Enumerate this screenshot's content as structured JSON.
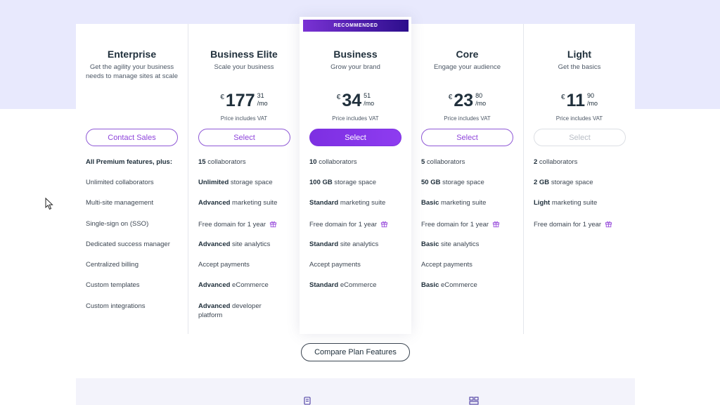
{
  "recommended_badge": "RECOMMENDED",
  "plans": [
    {
      "name": "Enterprise",
      "tagline": "Get the agility your business needs to manage sites at scale",
      "button": "Contact Sales",
      "features_heading": "All Premium features, plus:",
      "features": [
        {
          "b": "",
          "t": "Unlimited collaborators"
        },
        {
          "b": "",
          "t": "Multi-site management"
        },
        {
          "b": "",
          "t": "Single-sign on (SSO)"
        },
        {
          "b": "",
          "t": "Dedicated success manager"
        },
        {
          "b": "",
          "t": "Centralized billing"
        },
        {
          "b": "",
          "t": "Custom templates"
        },
        {
          "b": "",
          "t": "Custom integrations"
        }
      ]
    },
    {
      "name": "Business Elite",
      "tagline": "Scale your business",
      "currency": "€",
      "price_whole": "177",
      "price_cents": "31",
      "per": "/mo",
      "vat": "Price includes VAT",
      "button": "Select",
      "features": [
        {
          "b": "15",
          "t": " collaborators"
        },
        {
          "b": "Unlimited",
          "t": " storage space"
        },
        {
          "b": "Advanced",
          "t": " marketing suite"
        },
        {
          "b": "",
          "t": "Free domain for 1 year",
          "gift": true
        },
        {
          "b": "Advanced",
          "t": " site analytics"
        },
        {
          "b": "",
          "t": "Accept payments"
        },
        {
          "b": "Advanced",
          "t": " eCommerce"
        },
        {
          "b": "Advanced",
          "t": " developer platform"
        }
      ]
    },
    {
      "name": "Business",
      "tagline": "Grow your brand",
      "currency": "€",
      "price_whole": "34",
      "price_cents": "51",
      "per": "/mo",
      "vat": "Price includes VAT",
      "button": "Select",
      "features": [
        {
          "b": "10",
          "t": " collaborators"
        },
        {
          "b": "100 GB",
          "t": " storage space"
        },
        {
          "b": "Standard",
          "t": " marketing suite"
        },
        {
          "b": "",
          "t": "Free domain for 1 year",
          "gift": true
        },
        {
          "b": "Standard",
          "t": " site analytics"
        },
        {
          "b": "",
          "t": "Accept payments"
        },
        {
          "b": "Standard",
          "t": " eCommerce"
        }
      ]
    },
    {
      "name": "Core",
      "tagline": "Engage your audience",
      "currency": "€",
      "price_whole": "23",
      "price_cents": "80",
      "per": "/mo",
      "vat": "Price includes VAT",
      "button": "Select",
      "features": [
        {
          "b": "5",
          "t": " collaborators"
        },
        {
          "b": "50 GB",
          "t": " storage space"
        },
        {
          "b": "Basic",
          "t": " marketing suite"
        },
        {
          "b": "",
          "t": "Free domain for 1 year",
          "gift": true
        },
        {
          "b": "Basic",
          "t": " site analytics"
        },
        {
          "b": "",
          "t": "Accept payments"
        },
        {
          "b": "Basic",
          "t": " eCommerce"
        }
      ]
    },
    {
      "name": "Light",
      "tagline": "Get the basics",
      "currency": "€",
      "price_whole": "11",
      "price_cents": "90",
      "per": "/mo",
      "vat": "Price includes VAT",
      "button": "Select",
      "features": [
        {
          "b": "2",
          "t": " collaborators"
        },
        {
          "b": "2 GB",
          "t": " storage space"
        },
        {
          "b": "Light",
          "t": " marketing suite"
        },
        {
          "b": "",
          "t": "Free domain for 1 year",
          "gift": true
        }
      ]
    }
  ],
  "compare_button": "Compare Plan Features",
  "colors": {
    "accent": "#8f45db",
    "band": "#e8e9fd"
  }
}
